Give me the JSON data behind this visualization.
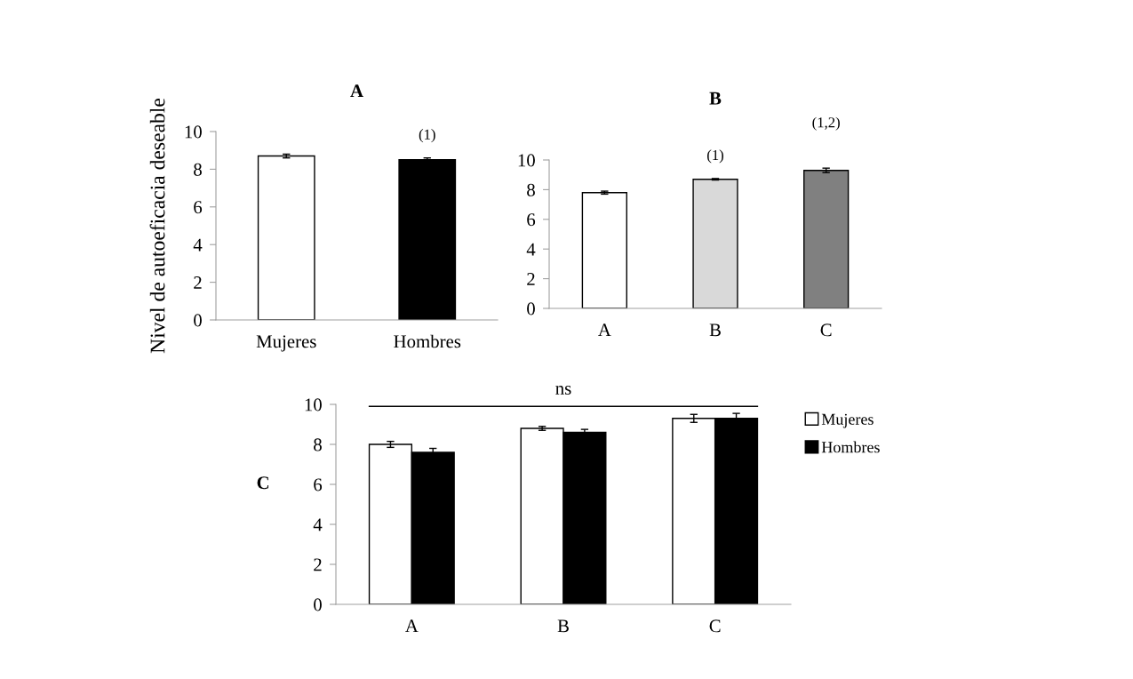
{
  "chart_data": [
    {
      "type": "bar",
      "title": "A",
      "ylabel": "Nivel de autoeficacia deseable",
      "categories": [
        "Mujeres",
        "Hombres"
      ],
      "values": [
        8.7,
        8.5
      ],
      "errors": [
        0.1,
        0.1
      ],
      "colors": [
        "#ffffff",
        "#000000"
      ],
      "ylim": [
        0,
        10
      ],
      "yticks": [
        0,
        2,
        4,
        6,
        8,
        10
      ],
      "grid": false,
      "legend": false,
      "annotations": [
        "(1)"
      ]
    },
    {
      "type": "bar",
      "title": "B",
      "categories": [
        "A",
        "B",
        "C"
      ],
      "values": [
        7.8,
        8.7,
        9.3
      ],
      "errors": [
        0.1,
        0.05,
        0.15
      ],
      "colors": [
        "#ffffff",
        "#d9d9d9",
        "#808080"
      ],
      "ylim": [
        0,
        10
      ],
      "yticks": [
        0,
        2,
        4,
        6,
        8,
        10
      ],
      "grid": false,
      "legend": false,
      "annotations": [
        "(1)",
        "(1,2)"
      ]
    },
    {
      "type": "bar",
      "title": "C",
      "categories": [
        "A",
        "B",
        "C"
      ],
      "ylim": [
        0,
        10
      ],
      "yticks": [
        0,
        2,
        4,
        6,
        8,
        10
      ],
      "grid": false,
      "legend": "right",
      "series": [
        {
          "name": "Mujeres",
          "color": "#ffffff",
          "values": [
            8.0,
            8.8,
            9.3
          ],
          "errors": [
            0.15,
            0.1,
            0.2
          ]
        },
        {
          "name": "Hombres",
          "color": "#000000",
          "values": [
            7.6,
            8.6,
            9.3
          ],
          "errors": [
            0.2,
            0.15,
            0.25
          ]
        }
      ],
      "annotations": [
        "ns"
      ]
    }
  ]
}
